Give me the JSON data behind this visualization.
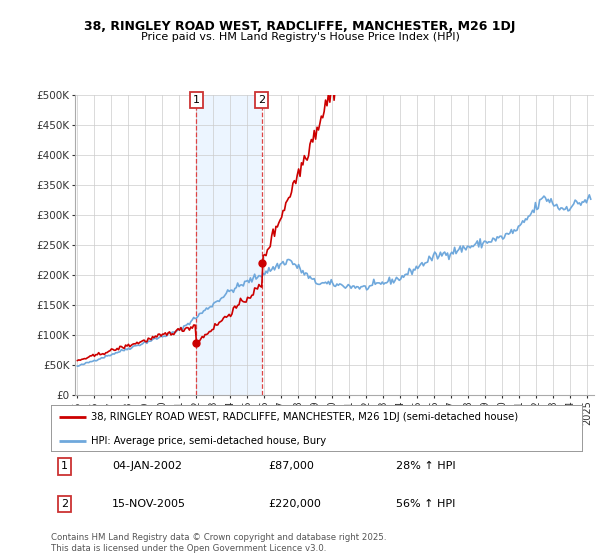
{
  "title_line1": "38, RINGLEY ROAD WEST, RADCLIFFE, MANCHESTER, M26 1DJ",
  "title_line2": "Price paid vs. HM Land Registry's House Price Index (HPI)",
  "legend_label_red": "38, RINGLEY ROAD WEST, RADCLIFFE, MANCHESTER, M26 1DJ (semi-detached house)",
  "legend_label_blue": "HPI: Average price, semi-detached house, Bury",
  "annotation1_date": "04-JAN-2002",
  "annotation1_price": "£87,000",
  "annotation1_hpi": "28% ↑ HPI",
  "annotation2_date": "15-NOV-2005",
  "annotation2_price": "£220,000",
  "annotation2_hpi": "56% ↑ HPI",
  "footer": "Contains HM Land Registry data © Crown copyright and database right 2025.\nThis data is licensed under the Open Government Licence v3.0.",
  "color_red": "#cc0000",
  "color_blue": "#6fa8dc",
  "color_vline": "#dd4444",
  "color_highlight_fill": "#ddeeff",
  "color_ann_box": "#cc3333",
  "ylim": [
    0,
    500000
  ],
  "yticks": [
    0,
    50000,
    100000,
    150000,
    200000,
    250000,
    300000,
    350000,
    400000,
    450000,
    500000
  ],
  "ytick_labels": [
    "£0",
    "£50K",
    "£100K",
    "£150K",
    "£200K",
    "£250K",
    "£300K",
    "£350K",
    "£400K",
    "£450K",
    "£500K"
  ],
  "ann1_x": 2002.04,
  "ann1_y": 87000,
  "ann2_x": 2005.88,
  "ann2_y": 220000,
  "vline1_x": 2002.04,
  "vline2_x": 2005.88,
  "xlim": [
    1994.9,
    2025.4
  ],
  "xtick_years": [
    1995,
    1996,
    1997,
    1998,
    1999,
    2000,
    2001,
    2002,
    2003,
    2004,
    2005,
    2006,
    2007,
    2008,
    2009,
    2010,
    2011,
    2012,
    2013,
    2014,
    2015,
    2016,
    2017,
    2018,
    2019,
    2020,
    2021,
    2022,
    2023,
    2024,
    2025
  ]
}
